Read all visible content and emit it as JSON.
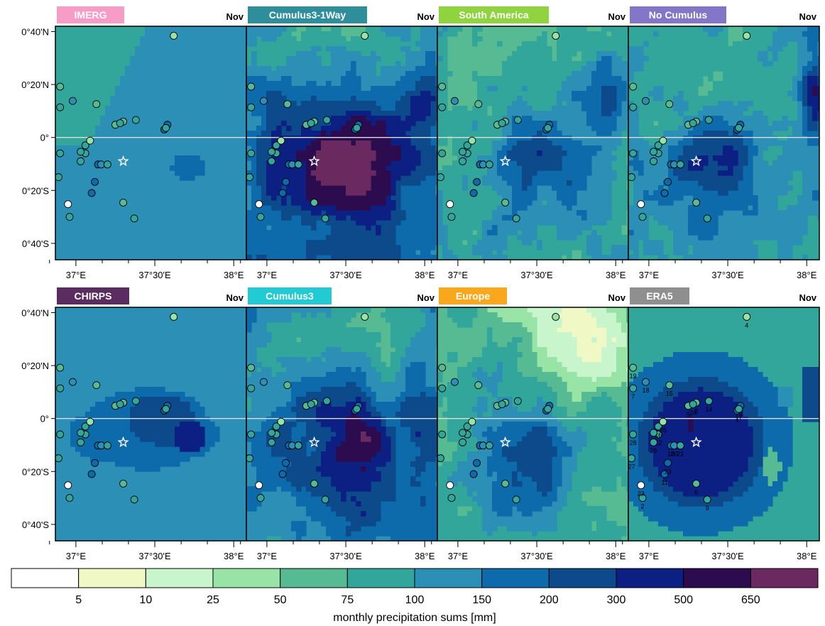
{
  "month": "Nov",
  "colors": {
    "band_0": "#ffffff",
    "band_1": "#f0f9c5",
    "band_2": "#c9f5cd",
    "band_3": "#98e3a6",
    "band_4": "#56bb93",
    "band_5": "#33a69b",
    "band_6": "#2b8fb6",
    "band_7": "#0d6bab",
    "band_8": "#0c4a8c",
    "band_9": "#0c2083",
    "band_10": "#2c0c4f",
    "band_11": "#6a2a5f",
    "equator": "#dddddd",
    "station_white": "#ffffff"
  },
  "axes": {
    "y_ticks": [
      {
        "value": 0.6667,
        "label": "0°40'N"
      },
      {
        "value": 0.3333,
        "label": "0°20'N"
      },
      {
        "value": 0.0,
        "label": "0°"
      },
      {
        "value": -0.3333,
        "label": "0°20'S"
      },
      {
        "value": -0.6667,
        "label": "0°40'S"
      }
    ],
    "x_ticks": [
      {
        "value": 37.0,
        "label": "37°E"
      },
      {
        "value": 37.5,
        "label": "37°30'E"
      },
      {
        "value": 38.0,
        "label": "38°E"
      }
    ],
    "x_minor": [
      36.833,
      37.167,
      37.333,
      37.667,
      37.833
    ],
    "lon_range": [
      36.87,
      38.08
    ],
    "lat_range": [
      -0.77,
      0.7
    ]
  },
  "panels": [
    {
      "id": "imerg",
      "label": "IMERG",
      "label_color": "#f79cc7",
      "field": "imerg"
    },
    {
      "id": "cumulus3-1way",
      "label": "Cumulus3-1Way",
      "label_color": "#2e8e9b",
      "field": "c1way"
    },
    {
      "id": "south-america",
      "label": "South America",
      "label_color": "#8fd43e",
      "field": "sam"
    },
    {
      "id": "no-cumulus",
      "label": "No Cumulus",
      "label_color": "#8376c9",
      "field": "nocu"
    },
    {
      "id": "chirps",
      "label": "CHIRPS",
      "label_color": "#5b2c60",
      "field": "chirps"
    },
    {
      "id": "cumulus3",
      "label": "Cumulus3",
      "label_color": "#22cbd3",
      "field": "c3"
    },
    {
      "id": "europe",
      "label": "Europe",
      "label_color": "#f9a81d",
      "field": "eur"
    },
    {
      "id": "era5",
      "label": "ERA5",
      "label_color": "#8f8f8f",
      "field": "era5",
      "show_station_numbers": true
    }
  ],
  "center_marker": {
    "lon": 37.3,
    "lat": -0.15
  },
  "stations": [
    {
      "id": "1",
      "lon": 37.56,
      "lat": 0.05,
      "band": 7
    },
    {
      "id": "2",
      "lon": 36.96,
      "lat": -0.5,
      "band": 5
    },
    {
      "id": "3",
      "lon": 37.58,
      "lat": 0.08,
      "band": 7
    },
    {
      "id": "4",
      "lon": 37.62,
      "lat": 0.64,
      "band": 3
    },
    {
      "id": "5",
      "lon": 37.25,
      "lat": 0.08,
      "band": 4
    },
    {
      "id": "6",
      "lon": 37.3,
      "lat": -0.41,
      "band": 4
    },
    {
      "id": "7",
      "lon": 36.9,
      "lat": 0.19,
      "band": 5
    },
    {
      "id": "8",
      "lon": 37.3,
      "lat": 0.1,
      "band": 4
    },
    {
      "id": "9",
      "lon": 37.37,
      "lat": -0.51,
      "band": 5
    },
    {
      "id": "10",
      "lon": 37.14,
      "lat": -0.17,
      "band": 7
    },
    {
      "id": "11",
      "lon": 37.1,
      "lat": -0.35,
      "band": 7
    },
    {
      "id": "12",
      "lon": 37.06,
      "lat": -0.1,
      "band": 5
    },
    {
      "id": "13",
      "lon": 37.12,
      "lat": -0.28,
      "band": 7
    },
    {
      "id": "14",
      "lon": 37.38,
      "lat": 0.11,
      "band": 5
    },
    {
      "id": "15",
      "lon": 37.13,
      "lat": 0.21,
      "band": 4
    },
    {
      "id": "16",
      "lon": 37.06,
      "lat": -0.05,
      "band": 5
    },
    {
      "id": "17",
      "lon": 37.57,
      "lat": 0.06,
      "band": 5
    },
    {
      "id": "18",
      "lon": 36.98,
      "lat": 0.23,
      "band": 6
    },
    {
      "id": "19",
      "lon": 36.9,
      "lat": 0.32,
      "band": 4
    },
    {
      "id": "20",
      "lon": 37.16,
      "lat": -0.17,
      "band": 6
    },
    {
      "id": "21",
      "lon": 37.2,
      "lat": -0.17,
      "band": 5
    },
    {
      "id": "22",
      "lon": 37.03,
      "lat": -0.09,
      "band": 5
    },
    {
      "id": "23",
      "lon": 36.95,
      "lat": -0.42,
      "band": 0
    },
    {
      "id": "24",
      "lon": 37.28,
      "lat": 0.09,
      "band": 5
    },
    {
      "id": "25",
      "lon": 37.09,
      "lat": -0.02,
      "band": 3
    },
    {
      "id": "26",
      "lon": 37.03,
      "lat": -0.15,
      "band": 5
    },
    {
      "id": "27",
      "lon": 36.89,
      "lat": -0.25,
      "band": 5
    },
    {
      "id": "28",
      "lon": 36.9,
      "lat": -0.1,
      "band": 5
    }
  ],
  "colorbar": {
    "tick_labels": [
      "5",
      "10",
      "25",
      "50",
      "75",
      "100",
      "150",
      "200",
      "300",
      "500",
      "650"
    ],
    "label": "monthly precipitation sums [mm]"
  }
}
